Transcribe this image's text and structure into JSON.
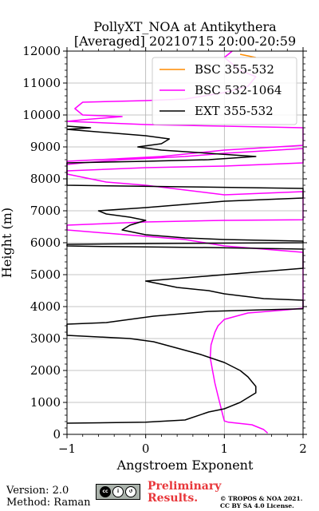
{
  "title_line1": "PollyXT_NOA at Antikythera",
  "title_line2": "[Averaged] 20210715 20:00-20:59",
  "footer": {
    "version": "Version: 2.0",
    "method": "Method: Raman",
    "preliminary_line1": "Preliminary",
    "preliminary_line2": "Results.",
    "copyright_line1": "© TROPOS & NOA 2021.",
    "copyright_line2": "CC BY SA 4.0 License.",
    "license_icon": "cc-by-sa-icon"
  },
  "chart_data": {
    "type": "line",
    "xlabel": "Angstroem Exponent",
    "ylabel": "Height (m)",
    "xlim": [
      -1,
      2
    ],
    "ylim": [
      0,
      12000
    ],
    "xticks": [
      "−1",
      "0",
      "1",
      "2"
    ],
    "yticks": [
      "0",
      "1000",
      "2000",
      "3000",
      "4000",
      "5000",
      "6000",
      "7000",
      "8000",
      "9000",
      "10000",
      "11000",
      "12000"
    ],
    "grid": true,
    "legend_position": "top-right",
    "series": [
      {
        "name": "BSC 355-532",
        "color": "#ff8c00",
        "points": [
          [
            1.2,
            11900
          ],
          [
            1.4,
            11800
          ]
        ]
      },
      {
        "name": "BSC 532-1064",
        "color": "#ff00ff",
        "points": [
          [
            1.55,
            40
          ],
          [
            1.5,
            150
          ],
          [
            1.35,
            300
          ],
          [
            1.05,
            380
          ],
          [
            1.0,
            420
          ],
          [
            0.98,
            600
          ],
          [
            0.95,
            900
          ],
          [
            0.92,
            1200
          ],
          [
            0.88,
            1600
          ],
          [
            0.85,
            2000
          ],
          [
            0.82,
            2400
          ],
          [
            0.83,
            2800
          ],
          [
            0.88,
            3200
          ],
          [
            0.92,
            3400
          ],
          [
            1.0,
            3600
          ],
          [
            1.3,
            3800
          ],
          [
            1.8,
            3900
          ],
          [
            2.0,
            3950
          ],
          [
            2.0,
            5700
          ],
          [
            1.5,
            5800
          ],
          [
            1.0,
            5900
          ],
          [
            0.5,
            6100
          ],
          [
            0,
            6200
          ],
          [
            -0.5,
            6300
          ],
          [
            -1,
            6400
          ],
          [
            -1,
            6550
          ],
          [
            0,
            6650
          ],
          [
            1,
            6700
          ],
          [
            2,
            6720
          ],
          [
            2,
            7600
          ],
          [
            1,
            7500
          ],
          [
            0,
            7800
          ],
          [
            -0.5,
            7900
          ],
          [
            -1,
            8150
          ],
          [
            -1,
            8250
          ],
          [
            0,
            8350
          ],
          [
            1,
            8400
          ],
          [
            2,
            8500
          ],
          [
            2,
            8950
          ],
          [
            1,
            8800
          ],
          [
            0.5,
            8700
          ],
          [
            -0.3,
            8600
          ],
          [
            -0.8,
            8500
          ],
          [
            -1,
            8450
          ],
          [
            -1,
            8550
          ],
          [
            0.2,
            8700
          ],
          [
            1,
            8900
          ],
          [
            2,
            9050
          ],
          [
            2,
            9600
          ],
          [
            1,
            9650
          ],
          [
            0,
            9700
          ],
          [
            -0.5,
            9750
          ],
          [
            -1,
            9800
          ],
          [
            -0.8,
            9850
          ],
          [
            -0.3,
            9950
          ],
          [
            -0.8,
            10000
          ],
          [
            -0.9,
            10200
          ],
          [
            -0.8,
            10400
          ],
          [
            0,
            10450
          ],
          [
            0.5,
            10500
          ],
          [
            1.0,
            10700
          ],
          [
            1.3,
            10900
          ],
          [
            1.4,
            11200
          ],
          [
            1.2,
            11400
          ],
          [
            1.1,
            11600
          ],
          [
            1.0,
            11800
          ],
          [
            1.1,
            12000
          ]
        ]
      },
      {
        "name": "EXT 355-532",
        "color": "#000000",
        "points": [
          [
            -1,
            350
          ],
          [
            0,
            380
          ],
          [
            0.5,
            450
          ],
          [
            0.8,
            700
          ],
          [
            1.0,
            800
          ],
          [
            1.2,
            1000
          ],
          [
            1.4,
            1300
          ],
          [
            1.4,
            1500
          ],
          [
            1.3,
            1800
          ],
          [
            1.2,
            2000
          ],
          [
            1.0,
            2250
          ],
          [
            0.7,
            2500
          ],
          [
            0.4,
            2700
          ],
          [
            0.1,
            2900
          ],
          [
            -0.2,
            3000
          ],
          [
            -0.6,
            3050
          ],
          [
            -1,
            3100
          ],
          [
            -1,
            3450
          ],
          [
            -0.5,
            3500
          ],
          [
            0.1,
            3700
          ],
          [
            0.8,
            3850
          ],
          [
            1.5,
            3900
          ],
          [
            2,
            3930
          ],
          [
            2,
            4200
          ],
          [
            1.5,
            4250
          ],
          [
            1.0,
            4400
          ],
          [
            0.8,
            4500
          ],
          [
            0.4,
            4600
          ],
          [
            0.2,
            4700
          ],
          [
            0.0,
            4800
          ],
          [
            0.5,
            4900
          ],
          [
            1.0,
            5000
          ],
          [
            1.5,
            5100
          ],
          [
            2,
            5200
          ],
          [
            2,
            5800
          ],
          [
            0.8,
            5850
          ],
          [
            -0.5,
            5880
          ],
          [
            -1,
            5900
          ],
          [
            -1,
            5950
          ],
          [
            0.5,
            5980
          ],
          [
            2,
            6000
          ],
          [
            2,
            6050
          ],
          [
            1.0,
            6100
          ],
          [
            0.5,
            6150
          ],
          [
            0,
            6250
          ],
          [
            -0.3,
            6400
          ],
          [
            -0.2,
            6550
          ],
          [
            0.0,
            6700
          ],
          [
            -0.2,
            6800
          ],
          [
            -0.5,
            6900
          ],
          [
            -0.6,
            7000
          ],
          [
            0.0,
            7100
          ],
          [
            0.5,
            7200
          ],
          [
            1.0,
            7300
          ],
          [
            1.5,
            7350
          ],
          [
            2,
            7400
          ],
          [
            2,
            7700
          ],
          [
            0.5,
            7750
          ],
          [
            -1,
            7800
          ],
          [
            -1,
            8500
          ],
          [
            0.0,
            8550
          ],
          [
            0.8,
            8600
          ],
          [
            1.4,
            8700
          ],
          [
            0.8,
            8800
          ],
          [
            0.2,
            8900
          ],
          [
            -0.1,
            9000
          ],
          [
            0.2,
            9100
          ],
          [
            0.3,
            9250
          ],
          [
            0.0,
            9350
          ],
          [
            -0.5,
            9450
          ],
          [
            -1,
            9550
          ],
          [
            -0.7,
            9600
          ],
          [
            -1,
            9650
          ]
        ]
      }
    ]
  }
}
